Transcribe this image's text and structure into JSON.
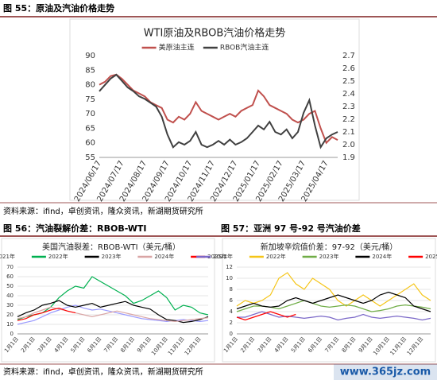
{
  "fig55": "图 55：原油及汽油价格走势",
  "fig56": "图 56：汽油裂解价差：RBOB-WTI",
  "fig57": "图 57：亚洲 97 号-92 号汽油价差",
  "source1": "资料来源：ifind，卓创资讯，隆众资讯，新湖期货研究所",
  "source2": "资料来源：ifind，卓创资讯，隆众资讯，新湖期货研究所",
  "watermark": "www.365jz.com",
  "chart_data": [
    {
      "type": "line",
      "title": "WTI原油及RBOB汽油价格走势",
      "categories": [
        "2024/06/17",
        null,
        null,
        null,
        "2024/07/17",
        null,
        null,
        null,
        "2024/08/17",
        null,
        null,
        null,
        "2024/09/17",
        null,
        null,
        null,
        "2024/10/17",
        null,
        null,
        null,
        "2024/11/17",
        null,
        null,
        null,
        "2024/12/17",
        null,
        null,
        null,
        "2025/01/17",
        null,
        null,
        null,
        "2025/02/17",
        null,
        null,
        null,
        "2025/03/17",
        null,
        null,
        null,
        "2025/04/17",
        null,
        null
      ],
      "series": [
        {
          "name": "美原油主连",
          "color": "#c0504d",
          "values": [
            80,
            81,
            83,
            83.5,
            82,
            80,
            78,
            77,
            76,
            74,
            73,
            72,
            68,
            67,
            69,
            68,
            70,
            74,
            71,
            70,
            69,
            68,
            69,
            70,
            69,
            71,
            72,
            73,
            78,
            76,
            73,
            72,
            71,
            70,
            68,
            67,
            68,
            70,
            71,
            65,
            60,
            62,
            61
          ]
        },
        {
          "name": "RBOB汽油主连",
          "color": "#404040",
          "axis": "y2",
          "values": [
            2.42,
            2.47,
            2.52,
            2.55,
            2.5,
            2.45,
            2.42,
            2.38,
            2.36,
            2.33,
            2.3,
            2.22,
            2.08,
            1.98,
            2.02,
            2,
            2.03,
            2.1,
            2,
            1.98,
            2,
            2.03,
            2,
            2.04,
            2,
            2.02,
            2.05,
            2.1,
            2.15,
            2.12,
            2.18,
            2.1,
            2.08,
            2.12,
            2.05,
            2.1,
            2.25,
            2.35,
            2.15,
            1.98,
            2.05,
            2.08,
            2.1
          ]
        }
      ],
      "ylim": [
        55,
        90
      ],
      "yticks": [
        55,
        60,
        65,
        70,
        75,
        80,
        85,
        90
      ],
      "y2lim": [
        1.9,
        2.7
      ],
      "y2ticks": [
        1.9,
        {
          "value": 2,
          "label": "2.0"
        },
        2.1,
        2.2,
        2.3,
        2.4,
        2.5,
        2.6,
        2.7
      ]
    },
    {
      "type": "line",
      "title": "美国汽油裂差：RBOB-WTI（美元/桶）",
      "categories": [
        "1月1日",
        null,
        "2月1日",
        null,
        "3月1日",
        null,
        "4月1日",
        null,
        "5月1日",
        null,
        "6月1日",
        null,
        "7月1日",
        null,
        "8月1日",
        null,
        "9月1日",
        null,
        "10月1日",
        null,
        "11月1日",
        null,
        "12月1日",
        null
      ],
      "series": [
        {
          "name": "2021年",
          "color": "#9999ff",
          "values": [
            10,
            12,
            14,
            18,
            22,
            25,
            28,
            30,
            27,
            25,
            26,
            24,
            22,
            20,
            18,
            16,
            15,
            14,
            13,
            14,
            15,
            14,
            13,
            14
          ]
        },
        {
          "name": "2022年",
          "color": "#00b050",
          "values": [
            15,
            18,
            20,
            22,
            28,
            38,
            45,
            50,
            48,
            60,
            55,
            50,
            45,
            40,
            32,
            35,
            40,
            45,
            38,
            25,
            30,
            28,
            22,
            20
          ]
        },
        {
          "name": "2023年",
          "color": "#000000",
          "values": [
            18,
            22,
            25,
            30,
            32,
            35,
            30,
            28,
            30,
            32,
            28,
            30,
            32,
            34,
            30,
            28,
            26,
            20,
            15,
            14,
            12,
            13,
            15,
            18
          ]
        },
        {
          "name": "2024年",
          "color": "#d9a5a5",
          "values": [
            16,
            18,
            22,
            25,
            28,
            26,
            24,
            22,
            20,
            18,
            20,
            22,
            24,
            22,
            20,
            18,
            16,
            15,
            14,
            13,
            14,
            15,
            16,
            17
          ]
        },
        {
          "name": "2025年",
          "color": "#ff0000",
          "values": [
            14,
            16,
            20,
            22,
            25,
            27,
            24,
            22,
            null,
            null,
            null,
            null,
            null,
            null,
            null,
            null,
            null,
            null,
            null,
            null,
            null,
            null,
            null,
            null
          ]
        }
      ],
      "ylim": [
        0,
        70
      ],
      "yticks": [
        0,
        10,
        20,
        30,
        40,
        50,
        60,
        70
      ]
    },
    {
      "type": "line",
      "title": "新加坡辛烷值价差：97-92（美元/桶）",
      "categories": [
        "1月1日",
        null,
        "2月1日",
        null,
        "3月1日",
        null,
        "4月1日",
        null,
        "5月1日",
        null,
        "6月1日",
        null,
        "7月1日",
        null,
        "8月1日",
        null,
        "9月1日",
        null,
        "10月1日",
        null,
        "11月1日",
        null,
        "12月1日",
        null
      ],
      "series": [
        {
          "name": "2021年",
          "color": "#7b68c8",
          "values": [
            3,
            3,
            3.5,
            4,
            3.5,
            3,
            3.2,
            3,
            2.8,
            3,
            3.2,
            3,
            2.5,
            2.8,
            3,
            3.5,
            3,
            2.8,
            3,
            3.2,
            3,
            2.8,
            2.5,
            2.8
          ]
        },
        {
          "name": "2022年",
          "color": "#f5c518",
          "values": [
            5,
            6,
            5.5,
            6,
            7,
            10,
            11,
            9,
            8,
            10,
            9,
            8,
            6,
            5,
            6,
            7,
            6,
            5,
            6,
            7,
            8,
            9,
            7,
            6
          ]
        },
        {
          "name": "2023年",
          "color": "#70ad47",
          "values": [
            4,
            4.5,
            5,
            5,
            4.8,
            4.5,
            5,
            5.5,
            6,
            5.5,
            5,
            4.8,
            5,
            5.2,
            5,
            4.5,
            4,
            4.2,
            4.5,
            5,
            5.2,
            5,
            4.8,
            4.5
          ]
        },
        {
          "name": "2024年",
          "color": "#000000",
          "values": [
            4.5,
            5,
            5.5,
            5,
            4.8,
            5,
            6,
            6.5,
            6,
            5.5,
            6,
            6.5,
            7,
            6.5,
            6,
            5.5,
            6,
            7,
            7.5,
            7,
            6.5,
            5,
            4.5,
            4
          ]
        },
        {
          "name": "2025年",
          "color": "#ff0000",
          "values": [
            3,
            2.5,
            3,
            3.5,
            4,
            3.5,
            3,
            3.5,
            null,
            null,
            null,
            null,
            null,
            null,
            null,
            null,
            null,
            null,
            null,
            null,
            null,
            null,
            null,
            null
          ]
        }
      ],
      "ylim": [
        0,
        12
      ],
      "yticks": [
        0,
        2,
        4,
        6,
        8,
        10,
        12
      ]
    }
  ]
}
